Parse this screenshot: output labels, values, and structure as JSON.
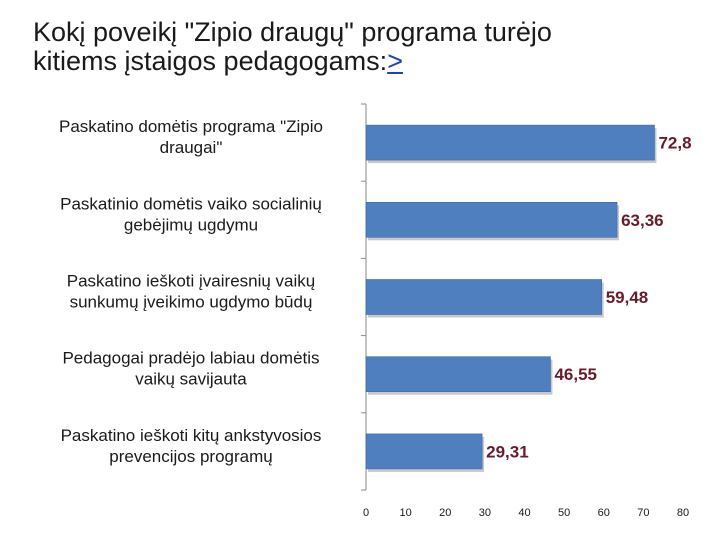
{
  "chart_data": {
    "type": "bar",
    "orientation": "horizontal",
    "title_line1": "Kokį poveikį \"Zipio draugų\" programa  turėjo",
    "title_line2": "kitiems įstaigos pedagogams:",
    "title_link": ">",
    "categories": [
      [
        "Paskatino domėtis programa \"Zipio",
        "draugai\""
      ],
      [
        "Paskatinio domėtis vaiko socialinių",
        "gebėjimų ugdymu"
      ],
      [
        "Paskatino ieškoti įvairesnių vaikų",
        "sunkumų įveikimo ugdymo būdų"
      ],
      [
        "Pedagogai pradėjo labiau domėtis",
        "vaikų savijauta"
      ],
      [
        "Paskatino ieškoti kitų ankstyvosios",
        "prevencijos programų"
      ]
    ],
    "values": [
      72.8,
      63.36,
      59.48,
      46.55,
      29.31
    ],
    "value_labels": [
      "72,8",
      "63,36",
      "59,48",
      "46,55",
      "29,31"
    ],
    "xlim": [
      0,
      80
    ],
    "xticks": [
      "0",
      "10",
      "20",
      "30",
      "40",
      "50",
      "60",
      "70",
      "80"
    ],
    "bar_color": "#4f7fbf",
    "value_label_color": "#6a1a2a",
    "grid": false
  }
}
